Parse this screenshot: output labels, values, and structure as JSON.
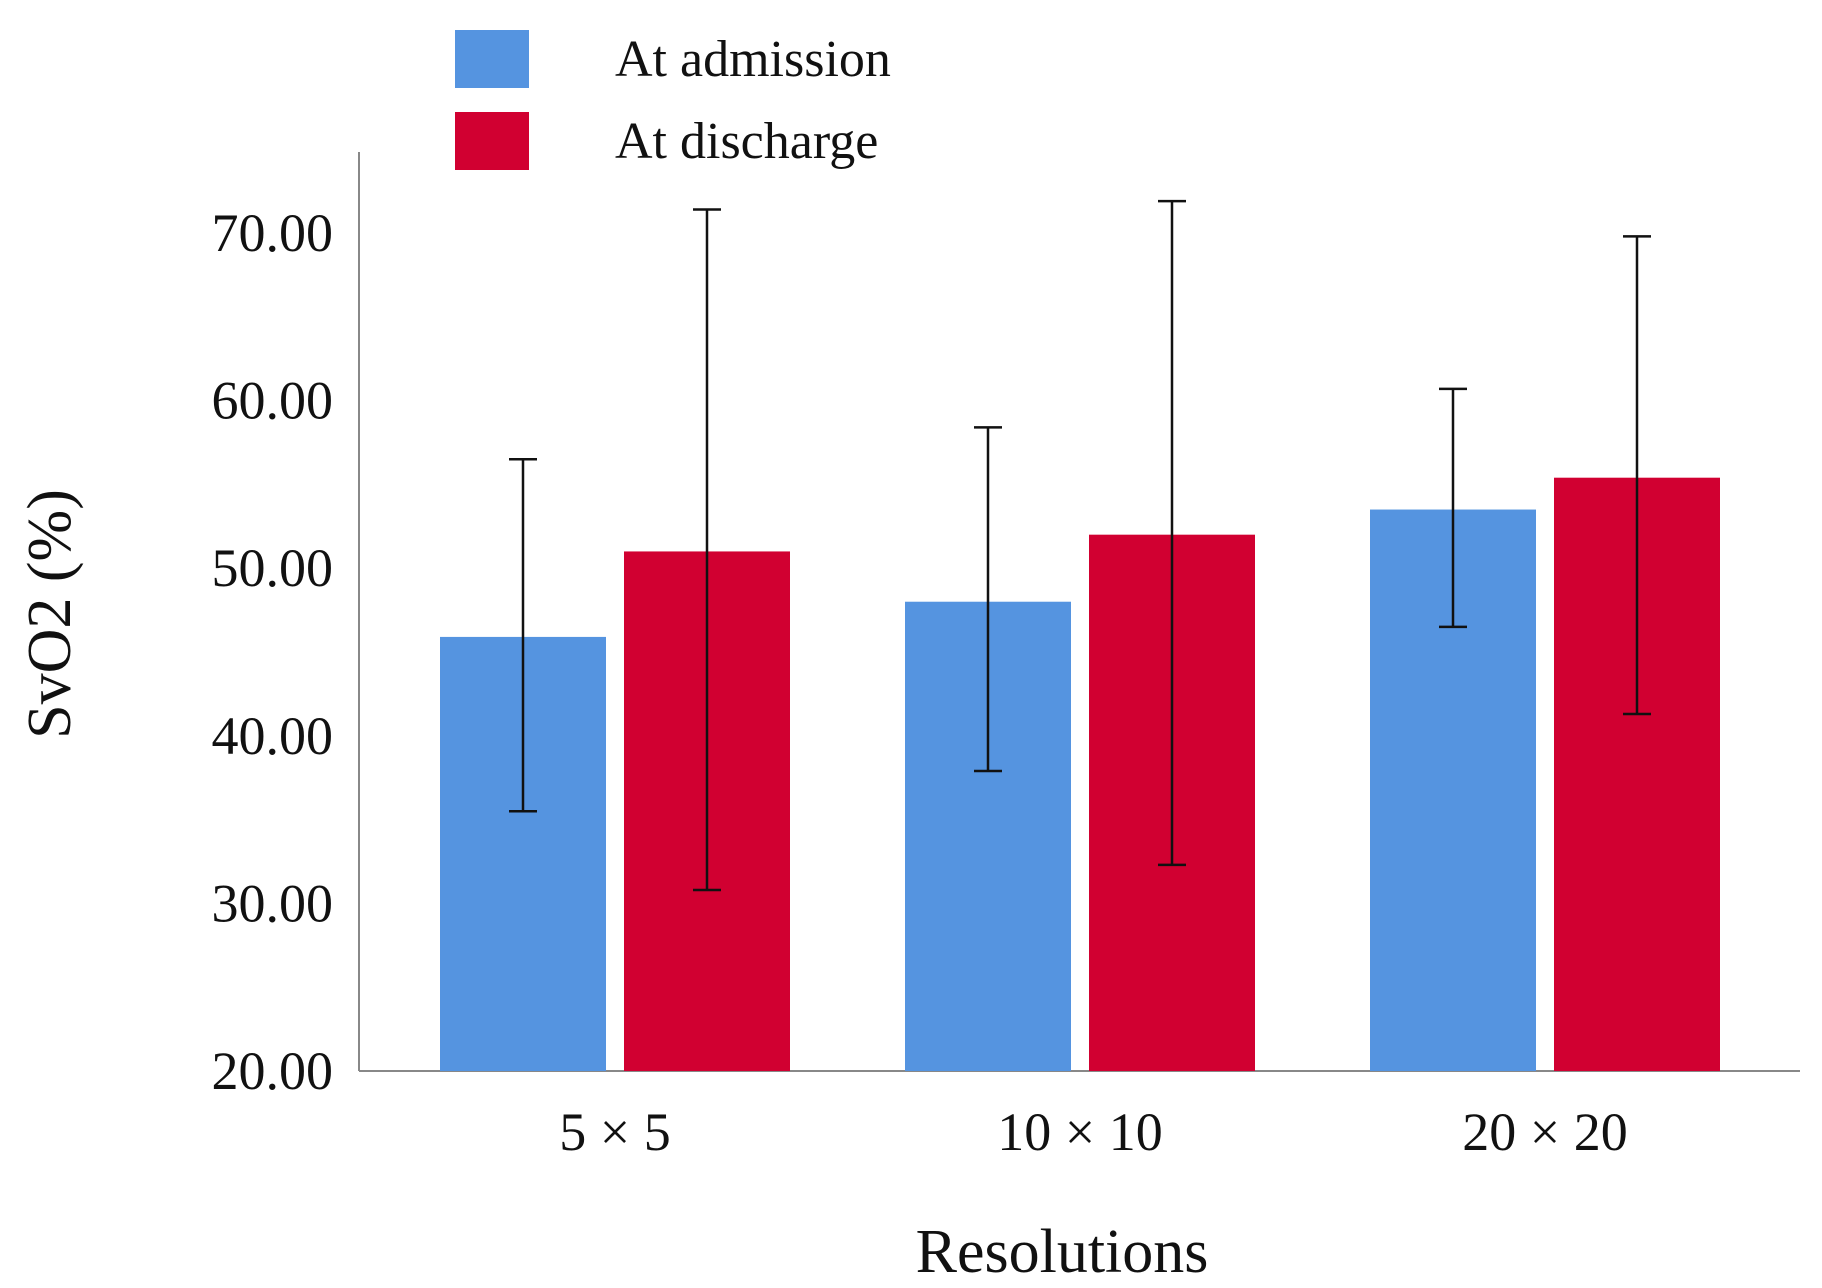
{
  "chart_data": {
    "type": "bar",
    "title": "",
    "xlabel": "Resolutions",
    "ylabel": "SvO2 (%)",
    "ylim": [
      20,
      75
    ],
    "yticks": [
      20,
      30,
      40,
      50,
      60,
      70
    ],
    "ytick_labels": [
      "20.00",
      "30.00",
      "40.00",
      "50.00",
      "60.00",
      "70.00"
    ],
    "categories": [
      "5 × 5",
      "10 × 10",
      "20 × 20"
    ],
    "legend_position": "top-left",
    "grid": false,
    "series": [
      {
        "name": "At admission",
        "color": "#5594e0",
        "values": [
          45.9,
          48.0,
          53.5
        ],
        "error_low": [
          35.5,
          37.9,
          46.5
        ],
        "error_high": [
          56.5,
          58.4,
          60.7
        ]
      },
      {
        "name": "At discharge",
        "color": "#d10031",
        "values": [
          51.0,
          52.0,
          55.4
        ],
        "error_low": [
          30.8,
          32.3,
          41.3
        ],
        "error_high": [
          71.4,
          71.9,
          69.8
        ]
      }
    ]
  }
}
